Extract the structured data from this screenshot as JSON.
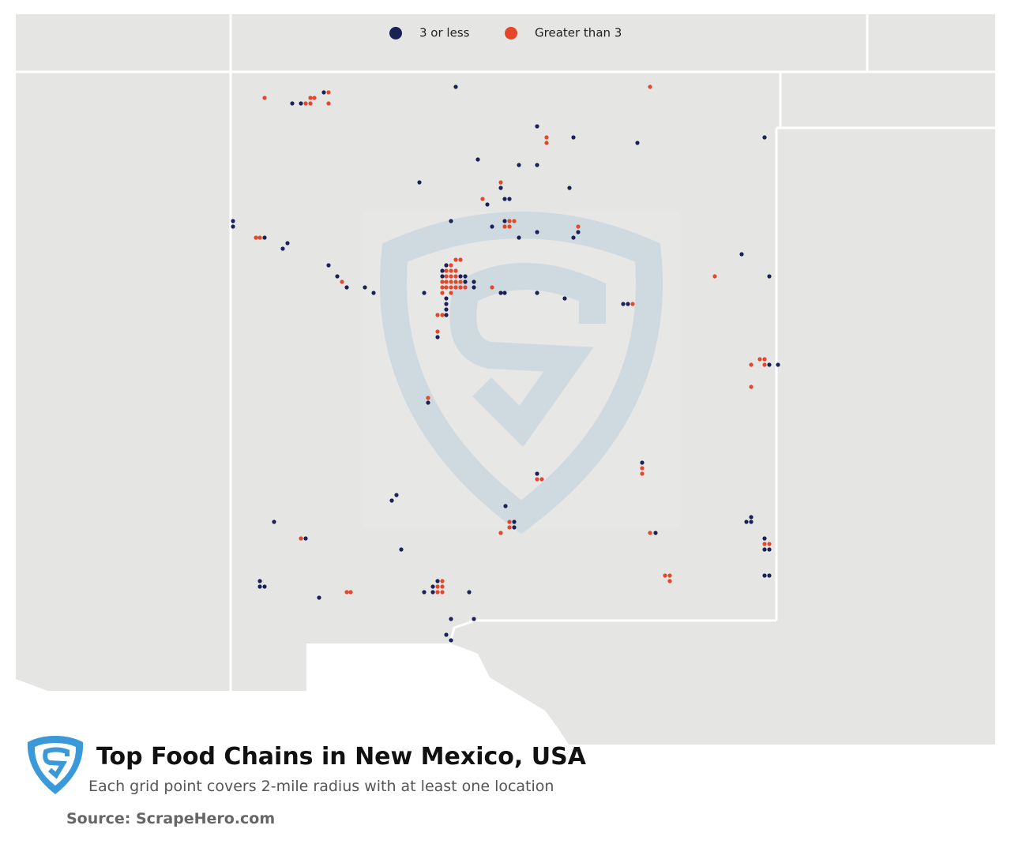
{
  "legend": {
    "items": [
      {
        "label": "3 or less",
        "color": "#1a2156"
      },
      {
        "label": "Greater than 3",
        "color": "#e4472a"
      }
    ]
  },
  "title": "Top Food Chains in New Mexico, USA",
  "subtitle": "Each grid point covers 2-mile radius with at least one location",
  "source": "Source: ScrapeHero.com"
}
